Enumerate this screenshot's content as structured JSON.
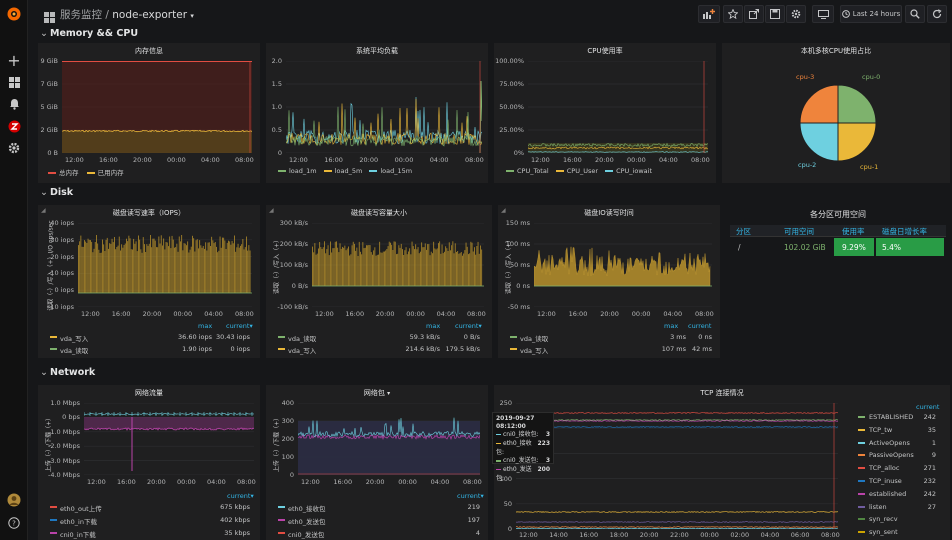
{
  "breadcrumb": {
    "folder": "服务监控",
    "separator": "/",
    "dashboard": "node-exporter"
  },
  "toolbar": {
    "time_range": "Last 24 hours"
  },
  "rows": {
    "memory_cpu": "Memory && CPU",
    "disk": "Disk",
    "network": "Network"
  },
  "x_ticks": [
    "12:00",
    "16:00",
    "20:00",
    "00:00",
    "04:00",
    "08:00"
  ],
  "panels": {
    "mem": {
      "title": "内存信息",
      "y_ticks": [
        "9 GiB",
        "7 GiB",
        "5 GiB",
        "2 GiB",
        "0 B"
      ],
      "legend": [
        "总内存",
        "已用内存"
      ],
      "colors": [
        "#e24d42",
        "#eab839"
      ]
    },
    "load": {
      "title": "系统平均负载",
      "y_ticks": [
        "2.0",
        "1.5",
        "1.0",
        "0.5",
        "0"
      ],
      "legend": [
        "load_1m",
        "load_5m",
        "load_15m"
      ],
      "colors": [
        "#7eb26d",
        "#eab839",
        "#6ed0e0"
      ]
    },
    "cpu": {
      "title": "CPU使用率",
      "y_ticks": [
        "100.00%",
        "75.00%",
        "50.00%",
        "25.00%",
        "0%"
      ],
      "legend": [
        "CPU_Total",
        "CPU_User",
        "CPU_iowait"
      ],
      "colors": [
        "#7eb26d",
        "#eab839",
        "#6ed0e0"
      ]
    },
    "pie": {
      "title": "本机多核CPU使用占比",
      "slices": [
        {
          "label": "cpu-0",
          "value": 25,
          "color": "#7eb26d"
        },
        {
          "label": "cpu-1",
          "value": 25,
          "color": "#eab839"
        },
        {
          "label": "cpu-2",
          "value": 25,
          "color": "#6ed0e0"
        },
        {
          "label": "cpu-3",
          "value": 25,
          "color": "#ef843c"
        }
      ]
    },
    "iops": {
      "title": "磁盘读写速率（IOPS）",
      "y_label": "读取（-）/写入（+）I/O ops/sec",
      "y_ticks": [
        "40 iops",
        "30 iops",
        "20 iops",
        "10 iops",
        "0 iops",
        "-10 iops"
      ],
      "table_headers": [
        "max",
        "current▾"
      ],
      "rows": [
        {
          "name": "vda_写入",
          "max": "36.60 iops",
          "current": "30.43 iops",
          "color": "#eab839"
        },
        {
          "name": "vda_读取",
          "max": "1.90 iops",
          "current": "0 iops",
          "color": "#7eb26d"
        }
      ]
    },
    "disk_bytes": {
      "title": "磁盘读写容量大小",
      "y_label": "读取（-）/写入（+）",
      "y_ticks": [
        "300 kB/s",
        "200 kB/s",
        "100 kB/s",
        "0 B/s",
        "-100 kB/s"
      ],
      "table_headers": [
        "max",
        "current▾"
      ],
      "rows": [
        {
          "name": "vda_读取",
          "max": "59.3 kB/s",
          "current": "0 B/s",
          "color": "#7eb26d"
        },
        {
          "name": "vda_写入",
          "max": "214.6 kB/s",
          "current": "179.5 kB/s",
          "color": "#eab839"
        }
      ]
    },
    "io_time": {
      "title": "磁盘IO读写时间",
      "y_label": "读取（-）/写入（+）",
      "y_ticks": [
        "150 ms",
        "100 ms",
        "50 ms",
        "0 ns",
        "-50 ms"
      ],
      "table_headers": [
        "max",
        "current"
      ],
      "rows": [
        {
          "name": "vda_读取",
          "max": "3 ms",
          "current": "0 ns",
          "color": "#7eb26d"
        },
        {
          "name": "vda_写入",
          "max": "107 ms",
          "current": "42 ms",
          "color": "#eab839"
        }
      ]
    },
    "space": {
      "title": "各分区可用空间",
      "headers": [
        "分区",
        "可用空间",
        "使用率",
        "磁盘日增长率"
      ],
      "row": {
        "partition": "/",
        "free": "102.02 GiB",
        "usage": "9.29%",
        "growth": "5.4%"
      }
    },
    "traffic": {
      "title": "网络流量",
      "y_label": "上传（-）/下载（+）",
      "y_ticks": [
        "1.0 Mbps",
        "0 bps",
        "-1.0 Mbps",
        "-2.0 Mbps",
        "-3.0 Mbps",
        "-4.0 Mbps"
      ],
      "x_ticks": [
        "12:00",
        "16:00",
        "20:00",
        "00:00",
        "04:00",
        "08:00"
      ],
      "table_headers": [
        "current▾"
      ],
      "rows": [
        {
          "name": "eth0_out上传",
          "current": "675 kbps",
          "color": "#e24d42"
        },
        {
          "name": "eth0_in下载",
          "current": "402 kbps",
          "color": "#1f78c1"
        },
        {
          "name": "cni0_in下载",
          "current": "35 kbps",
          "color": "#ba43a9"
        }
      ]
    },
    "packets": {
      "title": "网络包",
      "y_label": "上传（-）/下载（+）",
      "y_ticks": [
        "400",
        "300",
        "200",
        "100",
        "0"
      ],
      "x_ticks": [
        "12:00",
        "16:00",
        "20:00",
        "00:00",
        "04:00",
        "08:00"
      ],
      "table_headers": [
        "current▾"
      ],
      "rows": [
        {
          "name": "eth0_接收包",
          "current": "219",
          "color": "#6ed0e0"
        },
        {
          "name": "eth0_发送包",
          "current": "197",
          "color": "#ba43a9"
        },
        {
          "name": "cni0_发送包",
          "current": "4",
          "color": "#e24d42"
        }
      ]
    },
    "tcp": {
      "title": "TCP 连接情况",
      "y_ticks": [
        "250",
        "200",
        "150",
        "100",
        "50",
        "0"
      ],
      "x_ticks": [
        "12:00",
        "14:00",
        "16:00",
        "18:00",
        "20:00",
        "22:00",
        "00:00",
        "02:00",
        "04:00",
        "06:00",
        "08:00"
      ],
      "table_headers": [
        "current"
      ],
      "rows": [
        {
          "name": "ESTABLISHED",
          "current": "242",
          "color": "#7eb26d"
        },
        {
          "name": "TCP_tw",
          "current": "35",
          "color": "#eab839"
        },
        {
          "name": "ActiveOpens",
          "current": "1",
          "color": "#6ed0e0"
        },
        {
          "name": "PassiveOpens",
          "current": "9",
          "color": "#ef843c"
        },
        {
          "name": "TCP_alloc",
          "current": "271",
          "color": "#e24d42"
        },
        {
          "name": "TCP_inuse",
          "current": "232",
          "color": "#1f78c1"
        },
        {
          "name": "established",
          "current": "242",
          "color": "#ba43a9"
        },
        {
          "name": "listen",
          "current": "27",
          "color": "#705da0"
        },
        {
          "name": "syn_recv",
          "current": "",
          "color": "#508642"
        },
        {
          "name": "syn_sent",
          "current": "",
          "color": "#cca300"
        }
      ]
    },
    "tooltip": {
      "time": "2019-09-27 08:12:00",
      "rows": [
        {
          "name": "cni0_接收包:",
          "value": "3",
          "color": "#6ed0e0"
        },
        {
          "name": "eth0_接收包:",
          "value": "223",
          "color": "#eab839"
        },
        {
          "name": "cni0_发送包:",
          "value": "3",
          "color": "#7eb26d"
        },
        {
          "name": "eth0_发送包:",
          "value": "200",
          "color": "#ba43a9"
        }
      ]
    }
  }
}
